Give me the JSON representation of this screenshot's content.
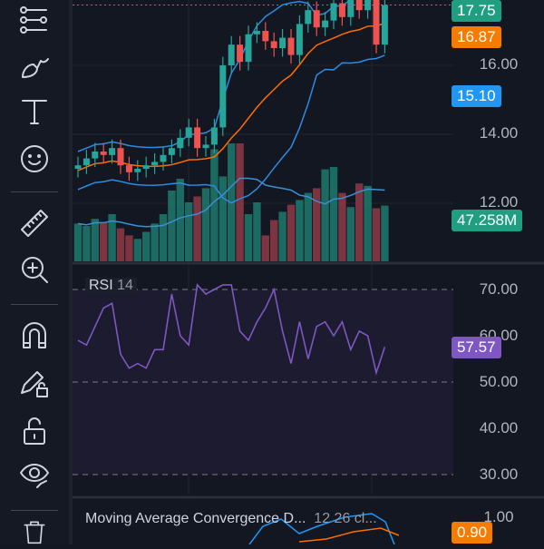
{
  "toolbar": {
    "tools": [
      {
        "name": "trend-line-tools",
        "icon": "line-tools-icon"
      },
      {
        "name": "brush",
        "icon": "brush-icon"
      },
      {
        "name": "text",
        "icon": "text-icon"
      },
      {
        "name": "emoji",
        "icon": "smiley-icon"
      },
      {
        "name": "ruler",
        "icon": "ruler-icon"
      },
      {
        "name": "zoom-in",
        "icon": "zoom-in-icon"
      },
      {
        "name": "magnet",
        "icon": "magnet-icon"
      },
      {
        "name": "lock-drawings",
        "icon": "pencil-lock-icon"
      },
      {
        "name": "lock-all",
        "icon": "unlock-icon"
      },
      {
        "name": "hide-drawings",
        "icon": "eye-icon"
      },
      {
        "name": "remove-drawings",
        "icon": "trash-icon"
      }
    ]
  },
  "price_axis": {
    "ticks": [
      "16.00",
      "14.00",
      "12.00"
    ],
    "badges": {
      "last_price": "17.75",
      "middle_band": "16.87",
      "lower_band": "15.10",
      "volume": "47.258M"
    }
  },
  "rsi": {
    "title": "RSI",
    "length": "14",
    "ticks": [
      "70.00",
      "60.00",
      "50.00",
      "40.00",
      "30.00"
    ],
    "value": "57.57",
    "values": [
      59,
      58,
      62,
      66,
      67,
      56,
      53,
      54,
      53,
      57,
      57,
      69,
      60,
      58,
      71,
      69,
      70,
      71,
      71,
      61,
      59,
      63,
      66,
      70,
      61,
      54,
      63,
      55,
      62,
      63,
      60,
      63,
      57,
      61,
      60,
      52,
      57.57
    ]
  },
  "macd": {
    "title": "Moving Average Convergence D...",
    "params": "12 26 cl...",
    "tick": "1.00",
    "value": "0.90"
  },
  "colors": {
    "up": "#26a69a",
    "down": "#ef5350",
    "band": "#2962ff",
    "basis": "#ff6d00",
    "rsi": "#7e57c2",
    "bg": "#131722"
  },
  "chart_data": {
    "type": "candlestick",
    "closes": [
      13.1,
      13.3,
      13.5,
      13.4,
      13.6,
      13.1,
      12.9,
      13.0,
      13.1,
      13.2,
      13.4,
      13.6,
      13.9,
      14.2,
      13.6,
      13.7,
      14.2,
      16.0,
      16.6,
      16.1,
      16.9,
      17.0,
      16.7,
      16.5,
      16.8,
      16.3,
      17.2,
      17.6,
      17.1,
      17.3,
      17.8,
      17.4,
      17.9,
      17.6,
      17.9,
      16.6,
      17.75
    ],
    "volumes": [
      32,
      30,
      36,
      33,
      40,
      28,
      22,
      19,
      25,
      32,
      40,
      60,
      70,
      50,
      55,
      62,
      95,
      72,
      100,
      100,
      40,
      50,
      22,
      35,
      42,
      48,
      52,
      58,
      62,
      78,
      80,
      58,
      46,
      66,
      64,
      45,
      47.258
    ]
  }
}
